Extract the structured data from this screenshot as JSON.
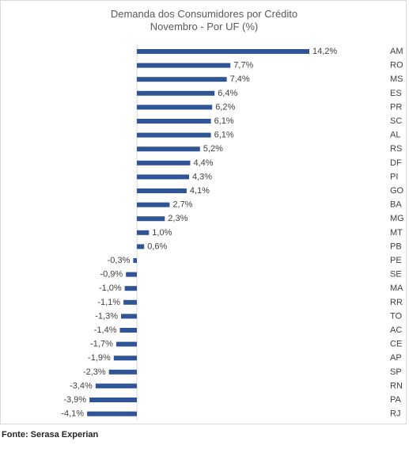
{
  "chart_data": {
    "type": "bar",
    "orientation": "horizontal",
    "title": "Demanda dos Consumidores por Crédito",
    "subtitle": "Novembro - Por UF (%)",
    "categories": [
      "AM",
      "RO",
      "MS",
      "ES",
      "PR",
      "SC",
      "AL",
      "RS",
      "DF",
      "PI",
      "GO",
      "BA",
      "MG",
      "MT",
      "PB",
      "PE",
      "SE",
      "MA",
      "RR",
      "TO",
      "AC",
      "CE",
      "AP",
      "SP",
      "RN",
      "PA",
      "RJ"
    ],
    "values": [
      14.2,
      7.7,
      7.4,
      6.4,
      6.2,
      6.1,
      6.1,
      5.2,
      4.4,
      4.3,
      4.1,
      2.7,
      2.3,
      1.0,
      0.6,
      -0.3,
      -0.9,
      -1.0,
      -1.1,
      -1.3,
      -1.4,
      -1.7,
      -1.9,
      -2.3,
      -3.4,
      -3.9,
      -4.1
    ],
    "data_labels": [
      "14,2%",
      "7,7%",
      "7,4%",
      "6,4%",
      "6,2%",
      "6,1%",
      "6,1%",
      "5,2%",
      "4,4%",
      "4,3%",
      "4,1%",
      "2,7%",
      "2,3%",
      "1,0%",
      "0,6%",
      "-0,3%",
      "-0,9%",
      "-1,0%",
      "-1,1%",
      "-1,3%",
      "-1,4%",
      "-1,7%",
      "-1,9%",
      "-2,3%",
      "-3,4%",
      "-3,9%",
      "-4,1%"
    ],
    "xlabel": "",
    "ylabel": "",
    "grid": false,
    "legend": "none",
    "bar_color": "#2f5597"
  },
  "source": "Fonte: Serasa Experian"
}
